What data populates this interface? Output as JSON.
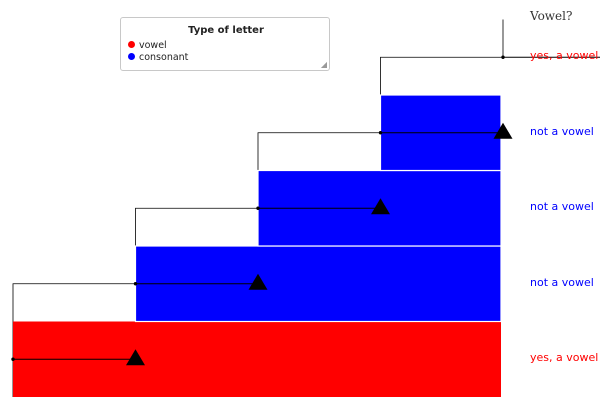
{
  "legend": {
    "title": "Type of letter",
    "items": [
      {
        "label": "vowel",
        "color": "#ff0000"
      },
      {
        "label": "consonant",
        "color": "#0000ff"
      }
    ]
  },
  "column_header": "Vowel?",
  "steps": [
    {
      "label": "yes, a vowel",
      "type": "vowel",
      "color": "#ff0000"
    },
    {
      "label": "not a vowel",
      "type": "consonant",
      "color": "#0000ff"
    },
    {
      "label": "not a vowel",
      "type": "consonant",
      "color": "#0000ff"
    },
    {
      "label": "not a vowel",
      "type": "consonant",
      "color": "#0000ff"
    },
    {
      "label": "yes, a vowel",
      "type": "vowel",
      "color": "#ff0000"
    }
  ]
}
